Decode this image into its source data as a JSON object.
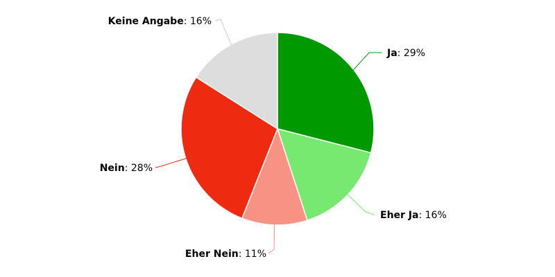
{
  "chart_data": {
    "type": "pie",
    "title": "",
    "slices": [
      {
        "label": "Ja",
        "value": 29,
        "value_text": "29%",
        "color": "#009900"
      },
      {
        "label": "Eher Ja",
        "value": 16,
        "value_text": "16%",
        "color": "#77e870"
      },
      {
        "label": "Eher Nein",
        "value": 11,
        "value_text": "11%",
        "color": "#f79285"
      },
      {
        "label": "Nein",
        "value": 28,
        "value_text": "28%",
        "color": "#ee2a10"
      },
      {
        "label": "Keine Angabe",
        "value": 16,
        "value_text": "16%",
        "color": "#dddddd"
      }
    ],
    "label_separator": ": ",
    "start_position": "top",
    "direction": "clockwise"
  }
}
